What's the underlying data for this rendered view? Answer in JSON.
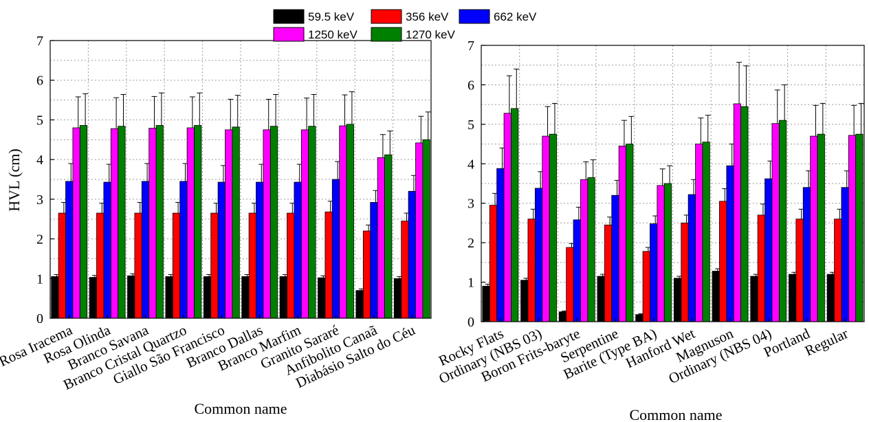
{
  "legend": [
    {
      "label": "59.5 keV",
      "color": "#000000"
    },
    {
      "label": "356 keV",
      "color": "#ff0000"
    },
    {
      "label": "662 keV",
      "color": "#0000ff"
    },
    {
      "label": "1250 keV",
      "color": "#ff00ff"
    },
    {
      "label": "1270 keV",
      "color": "#008000"
    }
  ],
  "chart_data": [
    {
      "type": "bar",
      "ylabel": "HVL (cm)",
      "xlabel": "Common name",
      "ylim": [
        0,
        7
      ],
      "yticks": [
        "0",
        "1",
        "2",
        "3",
        "4",
        "5",
        "6",
        "7"
      ],
      "grid": true,
      "categories": [
        "Rosa Iracema",
        "Rosa Olinda",
        "Branco Savana",
        "Branco Cristal Quartzo",
        "Giallo São Francisco",
        "Branco Dallas",
        "Branco Marfim",
        "Granito Sararé",
        "Anfibolito Canaã",
        "Diabásio Salto do Céu"
      ],
      "series": [
        {
          "name": "59.5 keV",
          "color": "#000000",
          "values": [
            1.05,
            1.03,
            1.07,
            1.05,
            1.05,
            1.05,
            1.05,
            1.02,
            0.7,
            1.0
          ],
          "errors": [
            0.05,
            0.05,
            0.05,
            0.05,
            0.05,
            0.05,
            0.05,
            0.05,
            0.04,
            0.05
          ]
        },
        {
          "name": "356 keV",
          "color": "#ff0000",
          "values": [
            2.65,
            2.65,
            2.65,
            2.65,
            2.65,
            2.65,
            2.65,
            2.68,
            2.2,
            2.45
          ],
          "errors": [
            0.27,
            0.25,
            0.27,
            0.27,
            0.25,
            0.25,
            0.25,
            0.27,
            0.15,
            0.2
          ]
        },
        {
          "name": "662 keV",
          "color": "#0000ff",
          "values": [
            3.45,
            3.43,
            3.45,
            3.45,
            3.43,
            3.43,
            3.43,
            3.5,
            2.92,
            3.2
          ],
          "errors": [
            0.45,
            0.45,
            0.45,
            0.45,
            0.42,
            0.45,
            0.45,
            0.45,
            0.3,
            0.4
          ]
        },
        {
          "name": "1250 keV",
          "color": "#ff00ff",
          "values": [
            4.8,
            4.78,
            4.79,
            4.8,
            4.75,
            4.75,
            4.75,
            4.85,
            4.05,
            4.42
          ],
          "errors": [
            0.78,
            0.78,
            0.8,
            0.78,
            0.77,
            0.77,
            0.8,
            0.78,
            0.58,
            0.67
          ]
        },
        {
          "name": "1270 keV",
          "color": "#008000",
          "values": [
            4.86,
            4.84,
            4.86,
            4.86,
            4.82,
            4.84,
            4.84,
            4.89,
            4.12,
            4.5
          ],
          "errors": [
            0.8,
            0.8,
            0.82,
            0.82,
            0.8,
            0.8,
            0.8,
            0.82,
            0.6,
            0.7
          ]
        }
      ]
    },
    {
      "type": "bar",
      "ylabel": "",
      "xlabel": "Common name",
      "ylim": [
        0,
        7
      ],
      "yticks": [
        "0",
        "1",
        "2",
        "3",
        "4",
        "5",
        "6",
        "7"
      ],
      "grid": true,
      "categories": [
        "Rocky Flats",
        "Ordinary (NBS 03)",
        "Boron Frits-baryte",
        "Serpentine",
        "Barite (Type BA)",
        "Hanford Wet",
        "Magnuson",
        "Ordinary (NBS 04)",
        "Portland",
        "Regular"
      ],
      "series": [
        {
          "name": "59.5 keV",
          "color": "#000000",
          "values": [
            0.9,
            1.05,
            0.25,
            1.15,
            0.18,
            1.1,
            1.28,
            1.15,
            1.2,
            1.2
          ],
          "errors": [
            0.05,
            0.05,
            0.02,
            0.05,
            0.02,
            0.05,
            0.06,
            0.05,
            0.05,
            0.05
          ]
        },
        {
          "name": "356 keV",
          "color": "#ff0000",
          "values": [
            2.95,
            2.6,
            1.88,
            2.45,
            1.78,
            2.5,
            3.05,
            2.7,
            2.6,
            2.6
          ],
          "errors": [
            0.3,
            0.25,
            0.1,
            0.2,
            0.1,
            0.2,
            0.32,
            0.28,
            0.25,
            0.25
          ]
        },
        {
          "name": "662 keV",
          "color": "#0000ff",
          "values": [
            3.88,
            3.38,
            2.58,
            3.2,
            2.48,
            3.22,
            3.95,
            3.62,
            3.4,
            3.4
          ],
          "errors": [
            0.52,
            0.42,
            0.32,
            0.38,
            0.2,
            0.38,
            0.55,
            0.45,
            0.42,
            0.42
          ]
        },
        {
          "name": "1250 keV",
          "color": "#ff00ff",
          "values": [
            5.28,
            4.7,
            3.6,
            4.45,
            3.45,
            4.5,
            5.52,
            5.02,
            4.7,
            4.72
          ],
          "errors": [
            0.95,
            0.75,
            0.45,
            0.65,
            0.42,
            0.66,
            1.05,
            0.85,
            0.78,
            0.76
          ]
        },
        {
          "name": "1270 keV",
          "color": "#008000",
          "values": [
            5.4,
            4.75,
            3.65,
            4.5,
            3.5,
            4.55,
            5.45,
            5.1,
            4.75,
            4.75
          ],
          "errors": [
            1.0,
            0.78,
            0.45,
            0.7,
            0.45,
            0.68,
            1.03,
            0.9,
            0.78,
            0.78
          ]
        }
      ]
    }
  ]
}
